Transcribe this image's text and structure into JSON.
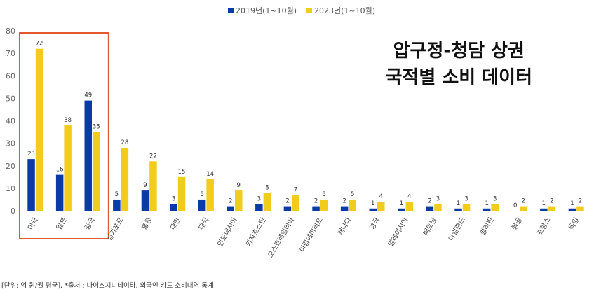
{
  "chart_data": {
    "type": "bar",
    "title_lines": [
      "압구정-청담 상권",
      "국적별 소비 데이터"
    ],
    "categories": [
      "미국",
      "일본",
      "중국",
      "싱가포르",
      "홍콩",
      "대만",
      "태국",
      "인도네시아",
      "카자흐스탄",
      "오스트레일리아",
      "아랍에미리트",
      "캐나다",
      "영국",
      "말레이시아",
      "베트남",
      "아일랜드",
      "필리핀",
      "몽골",
      "프랑스",
      "독일"
    ],
    "series": [
      {
        "name": "2019년(1~10월)",
        "color": "#0a3aa8",
        "values": [
          23,
          16,
          49,
          5,
          9,
          3,
          5,
          2,
          3,
          2,
          2,
          2,
          1,
          1,
          2,
          1,
          1,
          0,
          1,
          1
        ]
      },
      {
        "name": "2023년(1~10월)",
        "color": "#f2cc1c",
        "values": [
          72,
          38,
          35,
          28,
          22,
          15,
          14,
          9,
          8,
          7,
          5,
          5,
          4,
          4,
          3,
          3,
          3,
          2,
          2,
          2
        ]
      }
    ],
    "ylim": [
      0,
      80
    ],
    "yticks": [
      0,
      10,
      20,
      30,
      40,
      50,
      60,
      70,
      80
    ],
    "legend_position": "top-center",
    "highlight_color": "#e2572b",
    "highlighted_categories": [
      "미국",
      "일본",
      "중국"
    ]
  },
  "footnote": "[단위: 억 원/월 평균], *출처 : 나이스지니데이타, 외국인 카드 소비내역 통계"
}
